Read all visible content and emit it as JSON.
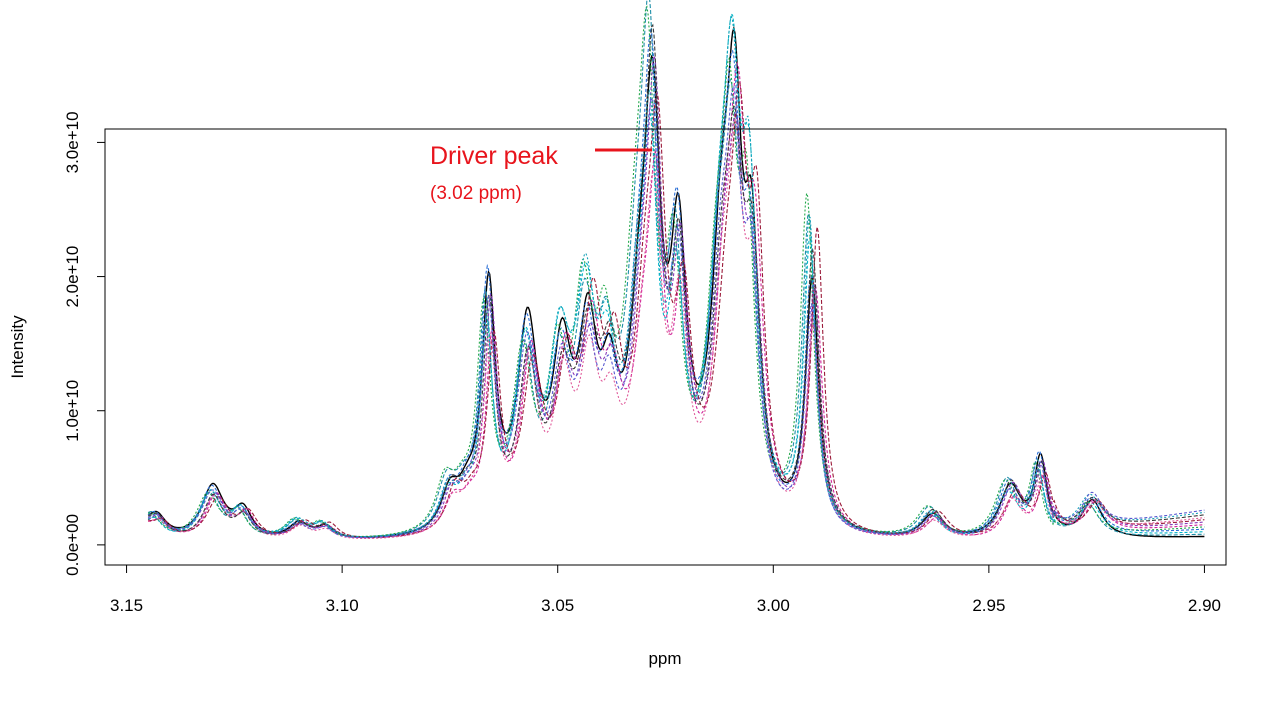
{
  "chart_data": {
    "type": "line",
    "title": "",
    "xlabel": "ppm",
    "ylabel": "Intensity",
    "xlim": [
      3.155,
      2.895
    ],
    "ylim": [
      -1500000000.0,
      31000000000.0
    ],
    "x_reversed": true,
    "grid": false,
    "x_ticks": [
      3.15,
      3.1,
      3.05,
      3.0,
      2.95,
      2.9
    ],
    "x_tick_labels": [
      "3.15",
      "3.10",
      "3.05",
      "3.00",
      "2.95",
      "2.90"
    ],
    "y_ticks": [
      0,
      10000000000.0,
      20000000000.0,
      30000000000.0
    ],
    "y_tick_labels": [
      "0.0e+00",
      "1.0e+10",
      "2.0e+10",
      "3.0e+10"
    ],
    "annotation": {
      "label": "Driver peak",
      "sublabel": "(3.02 ppm)",
      "color": "#e8141c",
      "x": 3.02,
      "y": 30000000000.0
    },
    "x_range": [
      3.145,
      2.9
    ],
    "peaks": [
      {
        "x": 3.15,
        "y": 3300000000.0,
        "w": 0.0032
      },
      {
        "x": 3.143,
        "y": 1400000000.0,
        "w": 0.0025
      },
      {
        "x": 3.13,
        "y": 3600000000.0,
        "w": 0.003
      },
      {
        "x": 3.123,
        "y": 2000000000.0,
        "w": 0.0025
      },
      {
        "x": 3.11,
        "y": 1300000000.0,
        "w": 0.003
      },
      {
        "x": 3.104,
        "y": 1000000000.0,
        "w": 0.0025
      },
      {
        "x": 3.075,
        "y": 3000000000.0,
        "w": 0.0025
      },
      {
        "x": 3.071,
        "y": 2000000000.0,
        "w": 0.0025
      },
      {
        "x": 3.066,
        "y": 16000000000.0,
        "w": 0.0018
      },
      {
        "x": 3.057,
        "y": 13000000000.0,
        "w": 0.0028
      },
      {
        "x": 3.049,
        "y": 11000000000.0,
        "w": 0.0028
      },
      {
        "x": 3.043,
        "y": 13500000000.0,
        "w": 0.0028
      },
      {
        "x": 3.038,
        "y": 9000000000.0,
        "w": 0.0025
      },
      {
        "x": 3.031,
        "y": 12000000000.0,
        "w": 0.003
      },
      {
        "x": 3.028,
        "y": 26000000000.0,
        "w": 0.0022
      },
      {
        "x": 3.022,
        "y": 17000000000.0,
        "w": 0.0022
      },
      {
        "x": 3.012,
        "y": 16000000000.0,
        "w": 0.003
      },
      {
        "x": 3.009,
        "y": 23000000000.0,
        "w": 0.0022
      },
      {
        "x": 3.005,
        "y": 19000000000.0,
        "w": 0.0022
      },
      {
        "x": 2.991,
        "y": 21000000000.0,
        "w": 0.0018
      },
      {
        "x": 2.963,
        "y": 2000000000.0,
        "w": 0.003
      },
      {
        "x": 2.945,
        "y": 3900000000.0,
        "w": 0.003
      },
      {
        "x": 2.938,
        "y": 5300000000.0,
        "w": 0.0018
      },
      {
        "x": 2.926,
        "y": 2500000000.0,
        "w": 0.003
      }
    ],
    "tail": {
      "from": 2.935,
      "start": 300000000.0,
      "end": 1200000000.0
    },
    "series": [
      {
        "color": "#000000",
        "dash": "none",
        "scale": 1.0,
        "shift": 0.0
      },
      {
        "color": "#1f8fa8",
        "dash": "4,2",
        "scale": 1.04,
        "shift": 0.0008
      },
      {
        "color": "#00b5c8",
        "dash": "3,2",
        "scale": 0.98,
        "shift": 0.0005
      },
      {
        "color": "#2b6fd6",
        "dash": "3,2",
        "scale": 1.0,
        "shift": 0.0003
      },
      {
        "color": "#22a84a",
        "dash": "2,2",
        "scale": 1.06,
        "shift": 0.0012
      },
      {
        "color": "#d0259a",
        "dash": "3,2",
        "scale": 0.88,
        "shift": -0.0008
      },
      {
        "color": "#8a3ab9",
        "dash": "3,2",
        "scale": 0.92,
        "shift": -0.0005
      },
      {
        "color": "#9b1b3a",
        "dash": "4,2",
        "scale": 0.95,
        "shift": -0.0012
      },
      {
        "color": "#e05a9a",
        "dash": "2,2",
        "scale": 0.8,
        "shift": -0.0003
      },
      {
        "color": "#3a3a3a",
        "dash": "4,2",
        "scale": 0.97,
        "shift": -0.0001
      },
      {
        "color": "#17a2b8",
        "dash": "2,2",
        "scale": 1.01,
        "shift": 0.0006
      },
      {
        "color": "#5a5ad0",
        "dash": "3,2",
        "scale": 0.9,
        "shift": 0.0001
      }
    ]
  }
}
